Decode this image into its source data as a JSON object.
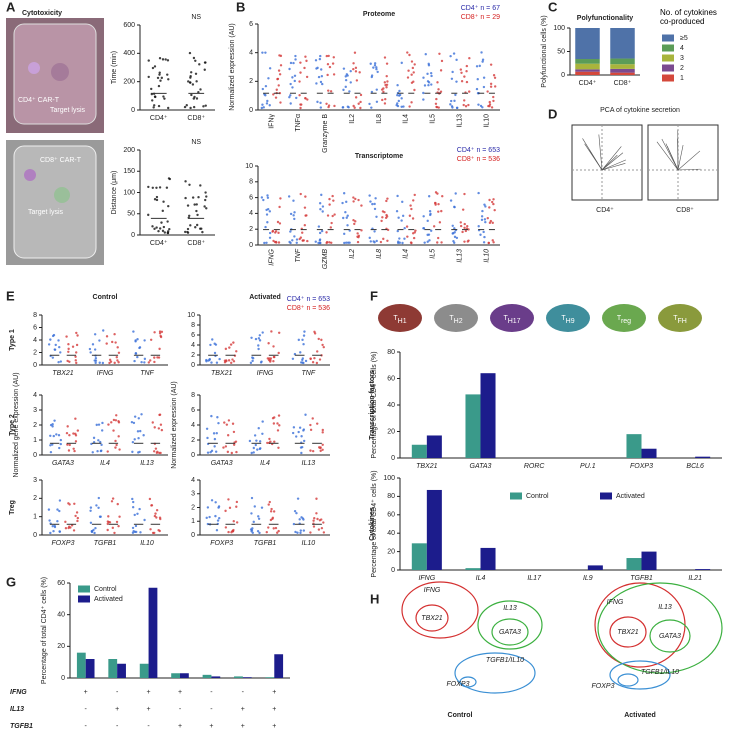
{
  "panel_labels": [
    "A",
    "B",
    "C",
    "D",
    "E",
    "F",
    "G",
    "H"
  ],
  "images": {
    "title": "Cytotoxicity",
    "top": [
      "CD4⁺ CAR-T",
      "Target lysis"
    ],
    "bottom": [
      "CD8⁺ CAR-T",
      "Target lysis"
    ]
  },
  "chart_data": [
    {
      "type": "dot",
      "ylabel": "Time (min)",
      "categories": [
        "CD4⁺",
        "CD8⁺"
      ],
      "ylim": [
        0,
        600
      ],
      "yticks": [
        0,
        200,
        400,
        600
      ],
      "annotation": "NS"
    },
    {
      "type": "dot",
      "ylabel": "Distance (μm)",
      "categories": [
        "CD4⁺",
        "CD8⁺"
      ],
      "ylim": [
        0,
        200
      ],
      "yticks": [
        0,
        50,
        100,
        150,
        200
      ],
      "annotation": "NS"
    },
    {
      "type": "dot",
      "title": "Proteome",
      "ylabel": "Normalized expression (AU)",
      "categories": [
        "IFNγ",
        "TNFα",
        "Granzyme B",
        "IL2",
        "IL8",
        "IL4",
        "IL5",
        "IL13",
        "IL10"
      ],
      "ylim": [
        0,
        6
      ],
      "yticks": [
        0,
        2,
        4,
        6
      ],
      "legend": [
        {
          "name": "CD4⁺ n = 67",
          "color": "#2a2aa8"
        },
        {
          "name": "CD8⁺ n = 29",
          "color": "#d42020"
        }
      ]
    },
    {
      "type": "dot",
      "title": "Transcriptome",
      "categories": [
        "IFNG",
        "TNF",
        "GZMB",
        "IL2",
        "IL8",
        "IL4",
        "IL5",
        "IL13",
        "IL10"
      ],
      "ylim": [
        0,
        10
      ],
      "yticks": [
        0,
        2,
        4,
        6,
        8,
        10
      ],
      "legend": [
        {
          "name": "CD4⁺ n = 653",
          "color": "#2a2aa8"
        },
        {
          "name": "CD8⁺ n = 536",
          "color": "#d42020"
        }
      ]
    },
    {
      "type": "stacked_bar",
      "title": "Polyfunctionality",
      "ylabel": "Polyfunctional cells (%)",
      "legend_title": "No. of cytokines co-produced",
      "categories": [
        "CD4⁺",
        "CD8⁺"
      ],
      "ylim": [
        0,
        100
      ],
      "yticks": [
        0,
        50,
        100
      ],
      "series": [
        {
          "name": "1",
          "color": "#d4483b",
          "values": [
            7,
            5
          ]
        },
        {
          "name": "2",
          "color": "#7b4a8f",
          "values": [
            5,
            8
          ]
        },
        {
          "name": "3",
          "color": "#a8b43c",
          "values": [
            12,
            10
          ]
        },
        {
          "name": "4",
          "color": "#5b9c57",
          "values": [
            10,
            12
          ]
        },
        {
          "name": "≥5",
          "color": "#4f72a8",
          "values": [
            66,
            65
          ]
        }
      ]
    },
    {
      "type": "dot",
      "title": "Control",
      "row": "Type 1",
      "categories": [
        "TBX21",
        "IFNG",
        "TNF"
      ],
      "ylim": [
        0,
        8
      ],
      "yticks": [
        0,
        2,
        4,
        6,
        8
      ]
    },
    {
      "type": "dot",
      "title": "Activated",
      "categories": [
        "TBX21",
        "IFNG",
        "TNF"
      ],
      "ylim": [
        0,
        10
      ],
      "yticks": [
        0,
        2,
        4,
        6,
        8,
        10
      ],
      "legend": [
        {
          "name": "CD4⁺ n = 653",
          "color": "#2a2aa8"
        },
        {
          "name": "CD8⁺ n = 536",
          "color": "#d42020"
        }
      ]
    },
    {
      "type": "dot",
      "row": "Type 2",
      "ylabel": "Normalized gene expression (AU)",
      "categories": [
        "GATA3",
        "IL4",
        "IL13"
      ],
      "ylim": [
        0,
        4
      ],
      "yticks": [
        0,
        1,
        2,
        3,
        4
      ]
    },
    {
      "type": "dot",
      "ylabel": "Normalized expression (AU)",
      "categories": [
        "GATA3",
        "IL4",
        "IL13"
      ],
      "ylim": [
        0,
        8
      ],
      "yticks": [
        0,
        2,
        4,
        6,
        8
      ]
    },
    {
      "type": "dot",
      "row": "Treg",
      "categories": [
        "FOXP3",
        "TGFB1",
        "IL10"
      ],
      "ylim": [
        0,
        3
      ],
      "yticks": [
        0,
        1,
        2,
        3
      ]
    },
    {
      "type": "dot",
      "categories": [
        "FOXP3",
        "TGFB1",
        "IL10"
      ],
      "ylim": [
        0,
        4
      ],
      "yticks": [
        0,
        1,
        2,
        3,
        4
      ]
    },
    {
      "type": "bar",
      "row": "Transcription factors",
      "ylabel": "Percentage of total CD4⁺ cells (%)",
      "categories": [
        "TBX21",
        "GATA3",
        "RORC",
        "PU.1",
        "FOXP3",
        "BCL6"
      ],
      "ylim": [
        0,
        80
      ],
      "yticks": [
        0,
        20,
        40,
        60,
        80
      ],
      "series": [
        {
          "name": "Control",
          "color": "#3a9a8a",
          "values": [
            10,
            48,
            0,
            0,
            18,
            0
          ]
        },
        {
          "name": "Activated",
          "color": "#1c1c8c",
          "values": [
            17,
            64,
            0,
            0,
            7,
            1
          ]
        }
      ]
    },
    {
      "type": "bar",
      "row": "Cytokines",
      "ylabel": "Percentage of total CD4⁺ cells (%)",
      "categories": [
        "IFNG",
        "IL4",
        "IL17",
        "IL9",
        "TGFB1",
        "IL21"
      ],
      "ylim": [
        0,
        100
      ],
      "yticks": [
        0,
        20,
        40,
        60,
        80,
        100
      ],
      "legend": "top",
      "series": [
        {
          "name": "Control",
          "color": "#3a9a8a",
          "values": [
            29,
            2,
            0,
            0,
            13,
            0
          ]
        },
        {
          "name": "Activated",
          "color": "#1c1c8c",
          "values": [
            87,
            24,
            0,
            5,
            20,
            1
          ]
        }
      ]
    },
    {
      "type": "bar",
      "ylabel": "Percentage of total CD4⁺ cells (%)",
      "categories": [
        null,
        null,
        null,
        null,
        null,
        null,
        null
      ],
      "ylim": [
        0,
        60
      ],
      "yticks": [
        0,
        20,
        40,
        60
      ],
      "legend": "top-left",
      "series": [
        {
          "name": "Control",
          "color": "#3a9a8a",
          "values": [
            16,
            12,
            9,
            3,
            2,
            1,
            0.5
          ]
        },
        {
          "name": "Activated",
          "color": "#1c1c8c",
          "values": [
            12,
            9,
            57,
            3,
            1,
            0.5,
            15
          ]
        }
      ],
      "combo": {
        "rows": [
          "IFNG",
          "IL13",
          "TGFB1"
        ],
        "marks": [
          [
            "+",
            "-",
            "+",
            "+",
            "-",
            "-",
            "+"
          ],
          [
            "-",
            "+",
            "+",
            "-",
            "-",
            "+",
            "+"
          ],
          [
            "-",
            "-",
            "-",
            "+",
            "+",
            "+",
            "+"
          ]
        ]
      }
    }
  ],
  "pca": {
    "title": "PCA of cytokine secretion",
    "labels": [
      "CD4⁺",
      "CD8⁺"
    ]
  },
  "cell_types": [
    {
      "label": "T",
      "sub": "H1",
      "color": "#8e3a34"
    },
    {
      "label": "T",
      "sub": "H2",
      "color": "#8c8c8c"
    },
    {
      "label": "T",
      "sub": "H17",
      "color": "#6a3d8a"
    },
    {
      "label": "T",
      "sub": "H9",
      "color": "#3f8e9c"
    },
    {
      "label": "T",
      "sub": "reg",
      "color": "#6aa84f"
    },
    {
      "label": "T",
      "sub": "FH",
      "color": "#8a9a3c"
    }
  ],
  "venn": [
    {
      "title": "Control",
      "labels": [
        "IFNG",
        "TBX21",
        "IL13",
        "GATA3",
        "FOXP3",
        "TGFB1/IL10"
      ]
    },
    {
      "title": "Activated",
      "labels": [
        "IFNG",
        "TBX21",
        "IL13",
        "GATA3",
        "FOXP3",
        "TGFB1/IL10"
      ]
    }
  ]
}
